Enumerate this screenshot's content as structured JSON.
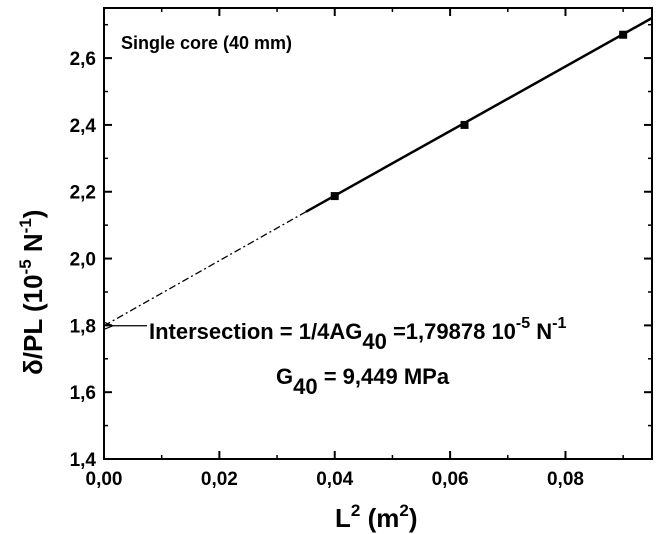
{
  "chart_data": {
    "type": "scatter",
    "title": "",
    "inset_label": "Single core (40 mm)",
    "xlabel": {
      "main": "L",
      "sup": "2",
      "unit_open": " (m",
      "unit_sup": "2",
      "unit_close": ")"
    },
    "ylabel": {
      "main": "δ/PL (10",
      "sup1": "-5",
      "mid": " N",
      "sup2": "-1",
      "close": ")"
    },
    "xlim": [
      0.0,
      0.095
    ],
    "ylim": [
      1.4,
      2.75
    ],
    "x_ticks": [
      0.0,
      0.02,
      0.04,
      0.06,
      0.08
    ],
    "x_tick_labels": [
      "0,00",
      "0,02",
      "0,04",
      "0,06",
      "0,08"
    ],
    "y_ticks": [
      1.4,
      1.6,
      1.8,
      2.0,
      2.2,
      2.4,
      2.6
    ],
    "y_tick_labels": [
      "1,4",
      "1,6",
      "1,8",
      "2,0",
      "2,2",
      "2,4",
      "2,6"
    ],
    "grid": false,
    "series": [
      {
        "marker": "square",
        "x": [
          0.04,
          0.0625,
          0.09
        ],
        "y": [
          2.187,
          2.4,
          2.67
        ]
      }
    ],
    "fit_line": {
      "style": "solid",
      "x": [
        0.035,
        0.095
      ],
      "y": [
        2.14,
        2.72
      ]
    },
    "extrapolation": {
      "style": "dash-dot",
      "x": [
        0.0,
        0.035
      ],
      "y": [
        1.79878,
        2.14
      ]
    },
    "annotations": {
      "intersection": {
        "prefix": "Intersection = 1/4AG",
        "sub": "40",
        "value": " =1,79878 10",
        "sup": "-5",
        "tail": " N",
        "sup2": "-1",
        "arrow_to": {
          "x": 0.0,
          "y": 1.79878
        }
      },
      "modulus": {
        "main": "G",
        "sub": "40",
        "value": " = 9,449 MPa"
      }
    }
  }
}
